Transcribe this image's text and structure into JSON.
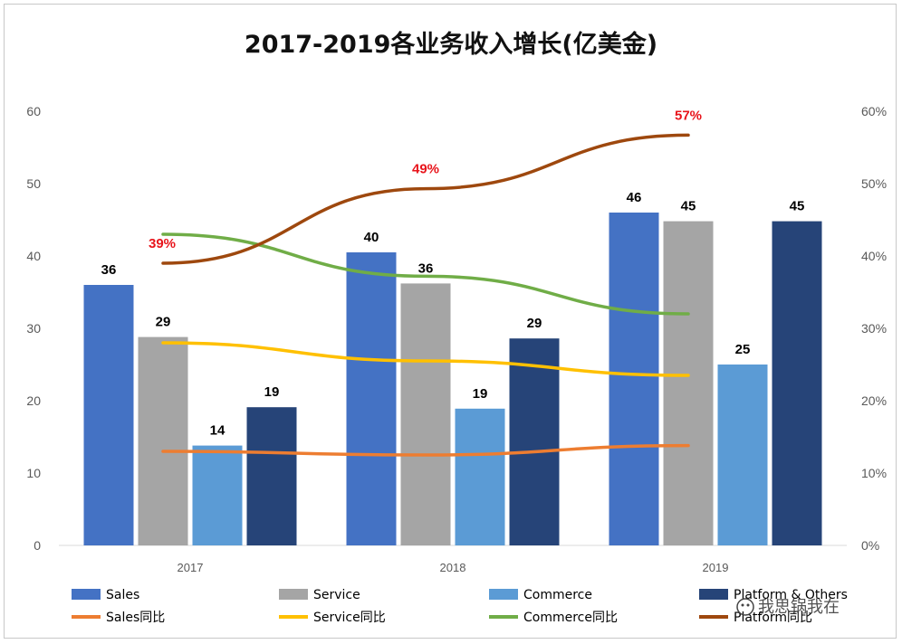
{
  "chart_data": {
    "type": "bar",
    "title": "2017-2019各业务收入增长(亿美金)",
    "categories": [
      "2017",
      "2018",
      "2019"
    ],
    "y_left": {
      "range": [
        0,
        60
      ],
      "ticks": [
        "0",
        "10",
        "20",
        "30",
        "40",
        "50",
        "60"
      ]
    },
    "y_right": {
      "range": [
        0,
        60
      ],
      "ticks": [
        "0%",
        "10%",
        "20%",
        "30%",
        "40%",
        "50%",
        "60%"
      ]
    },
    "bar_series": [
      {
        "name": "Sales",
        "color": "#4472c4",
        "values": [
          36,
          40.5,
          46
        ],
        "labels": [
          "36",
          "40",
          "46"
        ]
      },
      {
        "name": "Service",
        "color": "#a5a5a5",
        "values": [
          28.8,
          36.2,
          44.8
        ],
        "labels": [
          "29",
          "36",
          "45"
        ]
      },
      {
        "name": "Commerce",
        "color": "#5b9bd5",
        "values": [
          13.8,
          18.9,
          25
        ],
        "labels": [
          "14",
          "19",
          "25"
        ]
      },
      {
        "name": "Platform & Others",
        "color": "#264478",
        "values": [
          19.1,
          28.6,
          44.8
        ],
        "labels": [
          "19",
          "29",
          "45"
        ]
      }
    ],
    "line_series": [
      {
        "name": "Sales同比",
        "color": "#ed7d31",
        "values": [
          13,
          12.5,
          13.8
        ]
      },
      {
        "name": "Service同比",
        "color": "#ffc000",
        "values": [
          28,
          25.5,
          23.5
        ]
      },
      {
        "name": "Commerce同比",
        "color": "#70ad47",
        "values": [
          43,
          37.2,
          32
        ]
      },
      {
        "name": "Platform同比",
        "color": "#9e480e",
        "values": [
          39,
          49.3,
          56.7
        ],
        "labels": [
          "39%",
          "49%",
          "57%"
        ]
      }
    ],
    "legend": "bottom",
    "grid": false
  },
  "watermark": "我思锅我在"
}
